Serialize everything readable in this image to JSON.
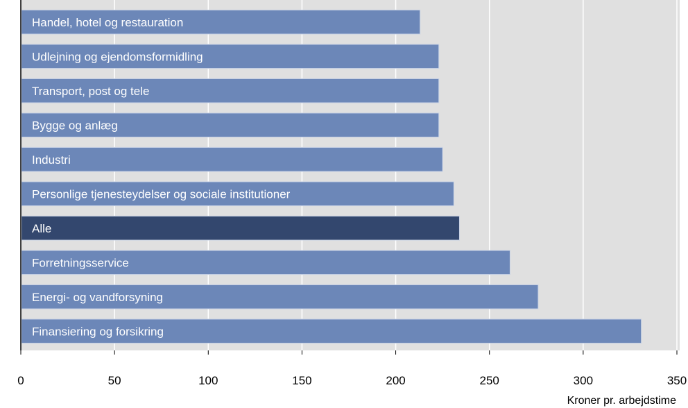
{
  "chart_data": {
    "type": "bar",
    "orientation": "horizontal",
    "categories": [
      "Handel, hotel og restauration",
      "Udlejning og ejendomsformidling",
      "Transport, post og tele",
      "Bygge og anlæg",
      "Industri",
      "Personlige tjenesteydelser og sociale institutioner",
      "Alle",
      "Forretningsservice",
      "Energi- og vandforsyning",
      "Finansiering og forsikring"
    ],
    "values": [
      213,
      223,
      223,
      223,
      225,
      231,
      234,
      261,
      276,
      331
    ],
    "highlight": "Alle",
    "xlim": [
      0,
      350
    ],
    "xticks": [
      "0",
      "50",
      "100",
      "150",
      "200",
      "250",
      "300",
      "350"
    ],
    "xlabel": "Kroner pr. arbejdstime",
    "ylabel": "",
    "title": "",
    "grid": true,
    "colors": {
      "bar": "#6c87b8",
      "bar_highlight": "#33476e",
      "bar_border": "#c9d3e5",
      "plot_background": "#e0e0e0",
      "grid": "#ffffff",
      "axis": "#000000"
    }
  }
}
